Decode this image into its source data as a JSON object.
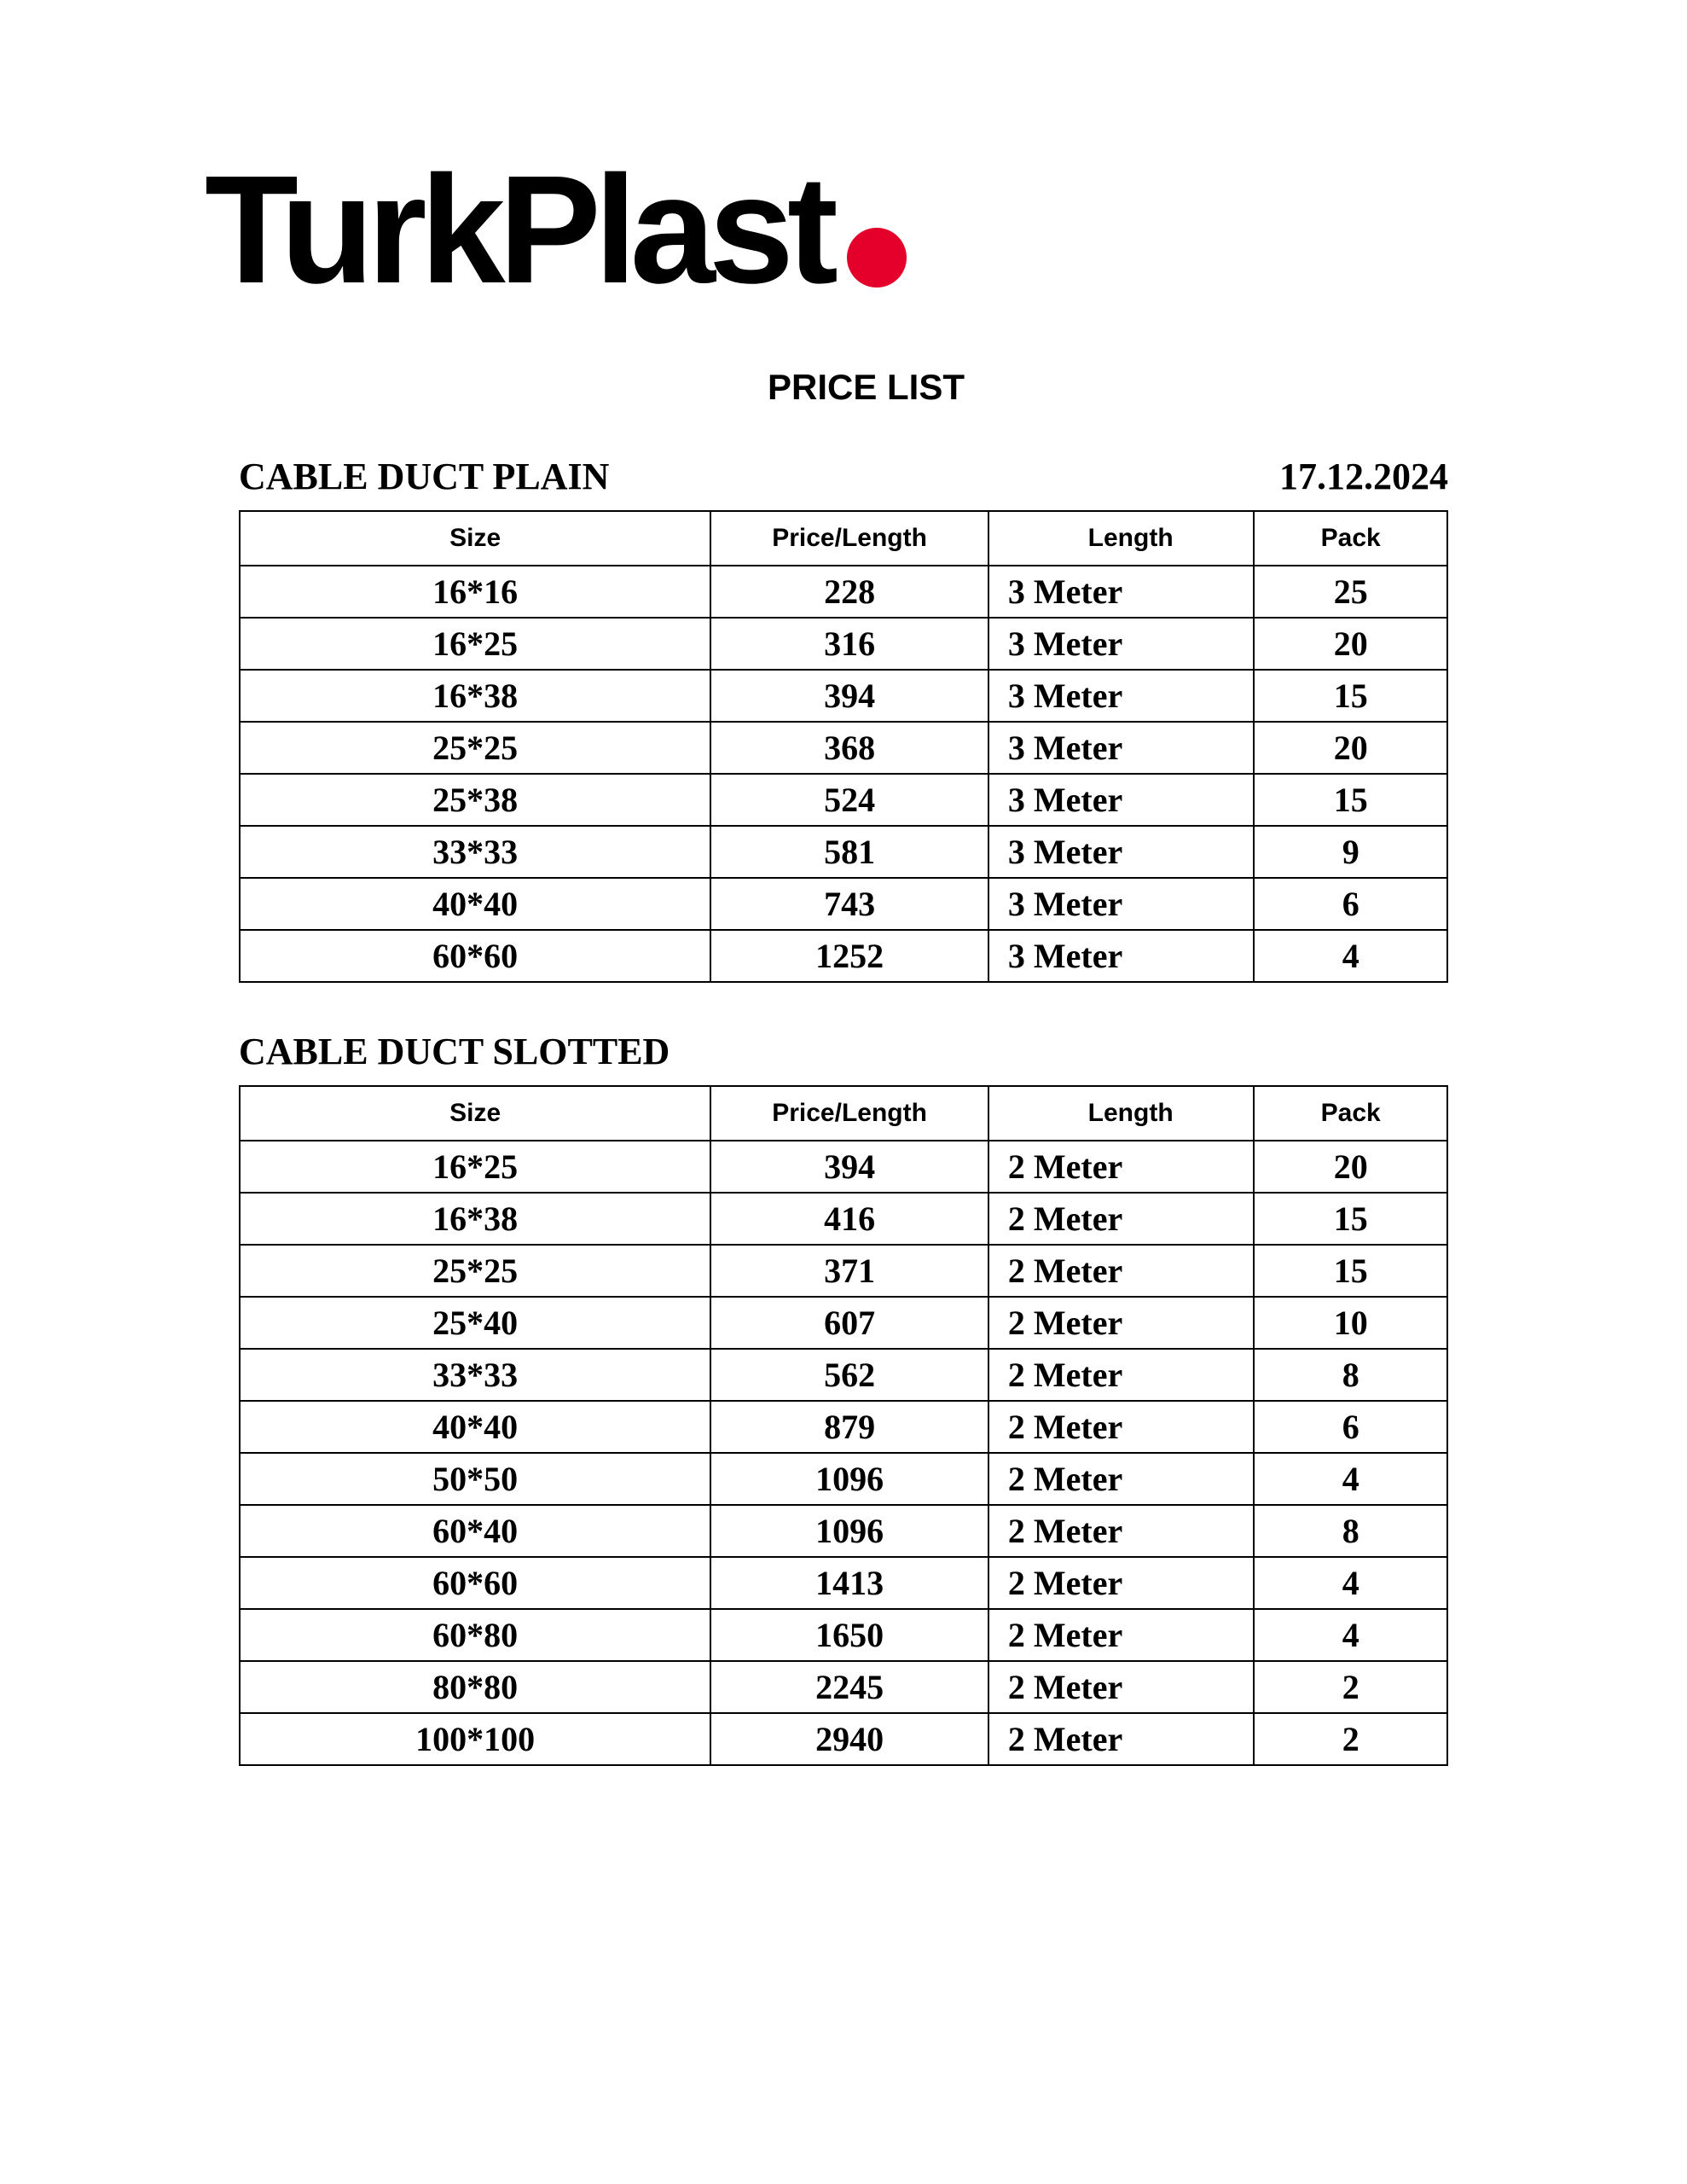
{
  "logo": {
    "text": "TurkPlast",
    "dot_color": "#e4002b"
  },
  "page_title": "PRICE LIST",
  "date": "17.12.2024",
  "columns": [
    "Size",
    "Price/Length",
    "Length",
    "Pack"
  ],
  "sections": [
    {
      "title": "CABLE DUCT PLAIN",
      "show_date": true,
      "rows": [
        {
          "size": "16*16",
          "price": "228",
          "length": "3 Meter",
          "pack": "25"
        },
        {
          "size": "16*25",
          "price": "316",
          "length": "3 Meter",
          "pack": "20"
        },
        {
          "size": "16*38",
          "price": "394",
          "length": "3 Meter",
          "pack": "15"
        },
        {
          "size": "25*25",
          "price": "368",
          "length": "3 Meter",
          "pack": "20"
        },
        {
          "size": "25*38",
          "price": "524",
          "length": "3 Meter",
          "pack": "15"
        },
        {
          "size": "33*33",
          "price": "581",
          "length": "3 Meter",
          "pack": "9"
        },
        {
          "size": "40*40",
          "price": "743",
          "length": "3 Meter",
          "pack": "6"
        },
        {
          "size": "60*60",
          "price": "1252",
          "length": "3 Meter",
          "pack": "4"
        }
      ]
    },
    {
      "title": "CABLE DUCT SLOTTED",
      "show_date": false,
      "rows": [
        {
          "size": "16*25",
          "price": "394",
          "length": "2 Meter",
          "pack": "20"
        },
        {
          "size": "16*38",
          "price": "416",
          "length": "2 Meter",
          "pack": "15"
        },
        {
          "size": "25*25",
          "price": "371",
          "length": "2 Meter",
          "pack": "15"
        },
        {
          "size": "25*40",
          "price": "607",
          "length": "2 Meter",
          "pack": "10"
        },
        {
          "size": "33*33",
          "price": "562",
          "length": "2 Meter",
          "pack": "8"
        },
        {
          "size": "40*40",
          "price": "879",
          "length": "2 Meter",
          "pack": "6"
        },
        {
          "size": "50*50",
          "price": "1096",
          "length": "2 Meter",
          "pack": "4"
        },
        {
          "size": "60*40",
          "price": "1096",
          "length": "2 Meter",
          "pack": "8"
        },
        {
          "size": "60*60",
          "price": "1413",
          "length": "2 Meter",
          "pack": "4"
        },
        {
          "size": "60*80",
          "price": "1650",
          "length": "2 Meter",
          "pack": "4"
        },
        {
          "size": "80*80",
          "price": "2245",
          "length": "2 Meter",
          "pack": "2"
        },
        {
          "size": "100*100",
          "price": "2940",
          "length": "2 Meter",
          "pack": "2"
        }
      ]
    }
  ]
}
